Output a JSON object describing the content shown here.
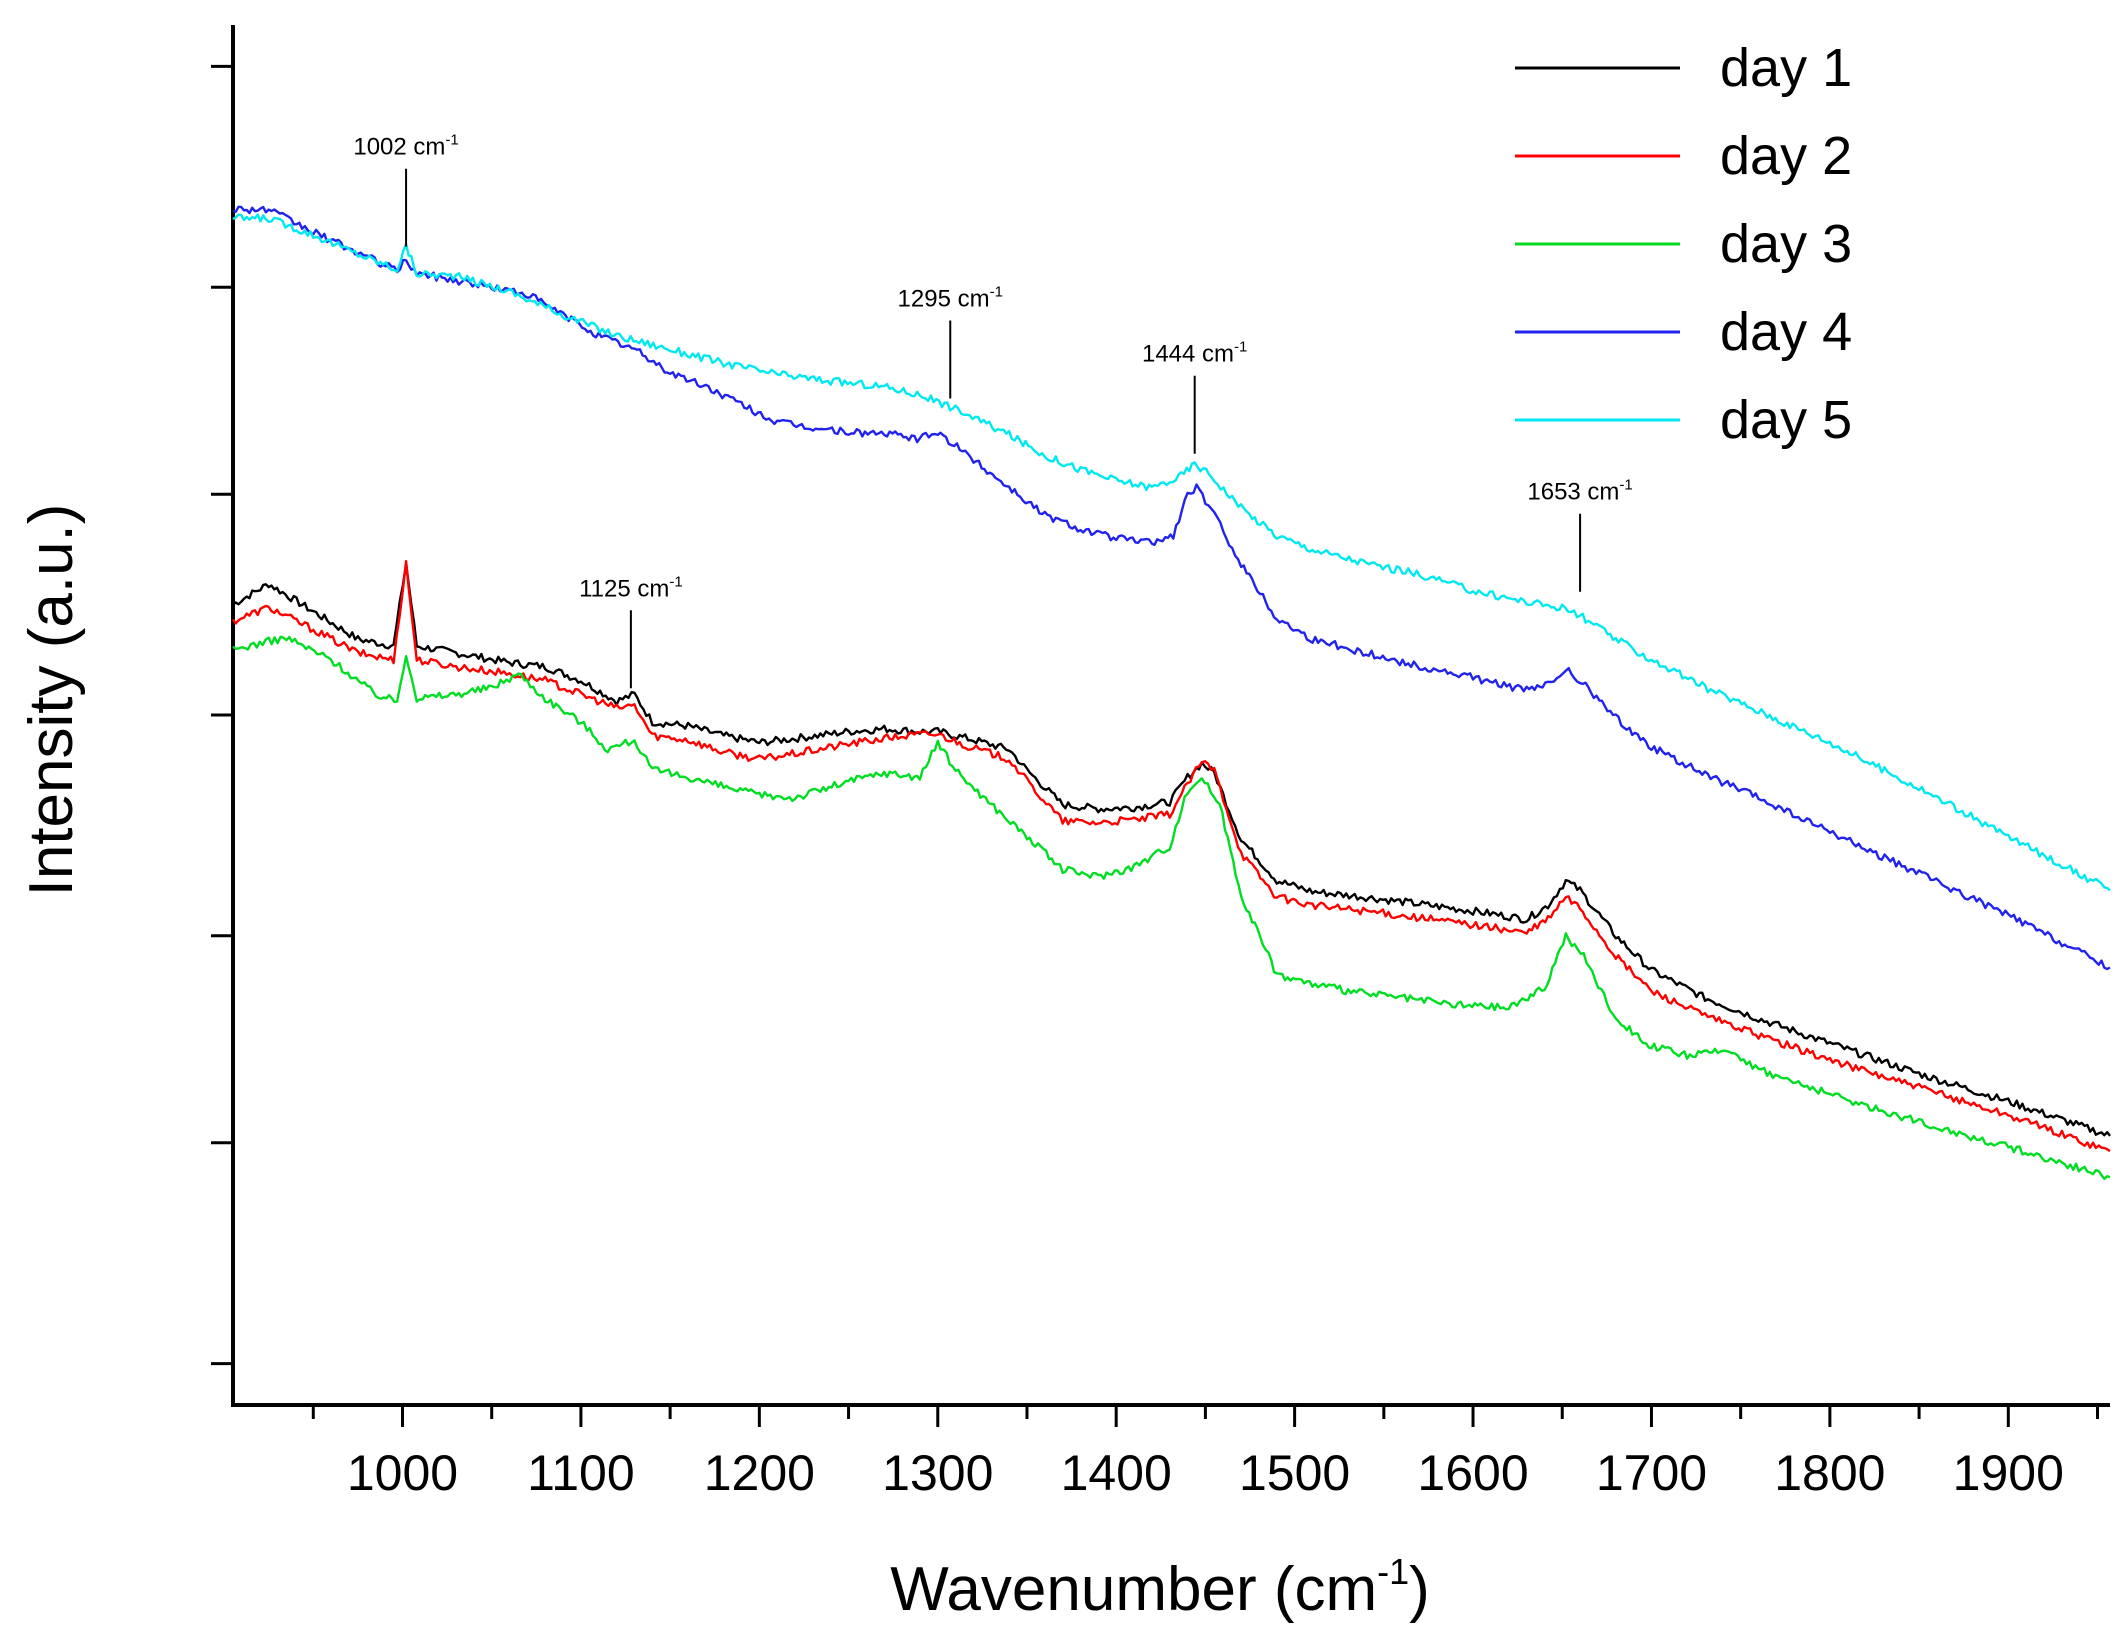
{
  "chart_data": {
    "type": "line",
    "title": "",
    "xlabel": "Wavenumber (cm",
    "xlabel_sup": "-1",
    "xlabel_close": ")",
    "ylabel": "Intensity (a.u.)",
    "xlim": [
      905,
      1957
    ],
    "ylim": [
      0,
      100
    ],
    "x_ticks": [
      1000,
      1100,
      1200,
      1300,
      1400,
      1500,
      1600,
      1700,
      1800,
      1900
    ],
    "x_minor_ticks": [
      950,
      1050,
      1150,
      1250,
      1350,
      1450,
      1550,
      1650,
      1750,
      1850,
      1950
    ],
    "y_ticks_unlabeled": [
      3,
      19,
      34,
      50,
      66,
      81,
      97
    ],
    "legend_position": "top-right",
    "series": [
      {
        "name": "day 1",
        "color": "#000000",
        "points": [
          [
            905,
            58
          ],
          [
            925,
            59.5
          ],
          [
            950,
            57.5
          ],
          [
            975,
            55.5
          ],
          [
            995,
            55
          ],
          [
            1002,
            61
          ],
          [
            1008,
            55
          ],
          [
            1030,
            54.5
          ],
          [
            1060,
            53.8
          ],
          [
            1080,
            53.5
          ],
          [
            1100,
            52.5
          ],
          [
            1120,
            51
          ],
          [
            1130,
            51.5
          ],
          [
            1140,
            49.5
          ],
          [
            1160,
            49.2
          ],
          [
            1180,
            48.5
          ],
          [
            1200,
            48
          ],
          [
            1220,
            48.3
          ],
          [
            1250,
            48.8
          ],
          [
            1270,
            49
          ],
          [
            1290,
            48.8
          ],
          [
            1300,
            48.8
          ],
          [
            1320,
            48.2
          ],
          [
            1340,
            47.5
          ],
          [
            1350,
            46
          ],
          [
            1370,
            43.5
          ],
          [
            1390,
            43.2
          ],
          [
            1410,
            43.3
          ],
          [
            1430,
            43.7
          ],
          [
            1440,
            45.5
          ],
          [
            1448,
            46.5
          ],
          [
            1455,
            45.8
          ],
          [
            1470,
            41
          ],
          [
            1490,
            38
          ],
          [
            1510,
            37.2
          ],
          [
            1540,
            36.8
          ],
          [
            1570,
            36.3
          ],
          [
            1600,
            35.8
          ],
          [
            1630,
            35.2
          ],
          [
            1642,
            36.2
          ],
          [
            1652,
            38
          ],
          [
            1660,
            37.3
          ],
          [
            1680,
            34
          ],
          [
            1700,
            31.5
          ],
          [
            1730,
            29.5
          ],
          [
            1760,
            28
          ],
          [
            1800,
            26.2
          ],
          [
            1850,
            24
          ],
          [
            1900,
            22
          ],
          [
            1957,
            19.5
          ]
        ]
      },
      {
        "name": "day 2",
        "color": "#ff0000",
        "points": [
          [
            905,
            56.8
          ],
          [
            925,
            57.8
          ],
          [
            950,
            56.2
          ],
          [
            975,
            54.5
          ],
          [
            995,
            54
          ],
          [
            1002,
            61
          ],
          [
            1008,
            54
          ],
          [
            1030,
            53.5
          ],
          [
            1060,
            53
          ],
          [
            1080,
            52.5
          ],
          [
            1100,
            51.5
          ],
          [
            1120,
            50.5
          ],
          [
            1130,
            50.7
          ],
          [
            1140,
            48.5
          ],
          [
            1160,
            48.2
          ],
          [
            1180,
            47.3
          ],
          [
            1200,
            46.8
          ],
          [
            1220,
            47.2
          ],
          [
            1250,
            47.9
          ],
          [
            1270,
            48.3
          ],
          [
            1290,
            48.6
          ],
          [
            1300,
            48.6
          ],
          [
            1320,
            47.6
          ],
          [
            1340,
            46.8
          ],
          [
            1350,
            45.2
          ],
          [
            1370,
            42.3
          ],
          [
            1390,
            42.2
          ],
          [
            1410,
            42.4
          ],
          [
            1430,
            42.8
          ],
          [
            1440,
            45
          ],
          [
            1448,
            46.6
          ],
          [
            1455,
            46
          ],
          [
            1470,
            40
          ],
          [
            1490,
            36.8
          ],
          [
            1510,
            36.2
          ],
          [
            1540,
            35.8
          ],
          [
            1570,
            35.3
          ],
          [
            1600,
            34.8
          ],
          [
            1630,
            34.2
          ],
          [
            1642,
            35.2
          ],
          [
            1652,
            36.8
          ],
          [
            1660,
            36
          ],
          [
            1680,
            32.5
          ],
          [
            1700,
            30
          ],
          [
            1730,
            28.2
          ],
          [
            1760,
            26.8
          ],
          [
            1800,
            25
          ],
          [
            1850,
            23
          ],
          [
            1900,
            21
          ],
          [
            1957,
            18.4
          ]
        ]
      },
      {
        "name": "day 3",
        "color": "#00dd22",
        "points": [
          [
            905,
            54.7
          ],
          [
            920,
            55.2
          ],
          [
            935,
            55.6
          ],
          [
            960,
            54
          ],
          [
            985,
            51.5
          ],
          [
            997,
            51
          ],
          [
            1002,
            54.5
          ],
          [
            1008,
            51.2
          ],
          [
            1030,
            51.5
          ],
          [
            1050,
            52
          ],
          [
            1065,
            53
          ],
          [
            1080,
            51.2
          ],
          [
            1100,
            49.5
          ],
          [
            1115,
            47.5
          ],
          [
            1130,
            48.2
          ],
          [
            1140,
            46
          ],
          [
            1160,
            45.5
          ],
          [
            1180,
            44.8
          ],
          [
            1200,
            44.2
          ],
          [
            1220,
            44
          ],
          [
            1250,
            45.2
          ],
          [
            1270,
            45.8
          ],
          [
            1290,
            45.5
          ],
          [
            1300,
            48
          ],
          [
            1310,
            46
          ],
          [
            1330,
            43.5
          ],
          [
            1350,
            41.2
          ],
          [
            1370,
            38.8
          ],
          [
            1390,
            38.3
          ],
          [
            1410,
            39
          ],
          [
            1430,
            40.5
          ],
          [
            1440,
            44.5
          ],
          [
            1448,
            45.5
          ],
          [
            1458,
            43.5
          ],
          [
            1470,
            37
          ],
          [
            1490,
            31.2
          ],
          [
            1510,
            30.5
          ],
          [
            1530,
            30
          ],
          [
            1560,
            29.5
          ],
          [
            1590,
            29
          ],
          [
            1620,
            28.8
          ],
          [
            1640,
            30.2
          ],
          [
            1652,
            34
          ],
          [
            1662,
            32.5
          ],
          [
            1680,
            28
          ],
          [
            1700,
            26
          ],
          [
            1720,
            25.3
          ],
          [
            1745,
            25.7
          ],
          [
            1760,
            24.3
          ],
          [
            1800,
            22.5
          ],
          [
            1850,
            20.5
          ],
          [
            1900,
            18.7
          ],
          [
            1957,
            16.5
          ]
        ]
      },
      {
        "name": "day 4",
        "color": "#2222ee",
        "points": [
          [
            905,
            86.7
          ],
          [
            925,
            86.6
          ],
          [
            950,
            85
          ],
          [
            975,
            83.5
          ],
          [
            997,
            82.2
          ],
          [
            1002,
            83
          ],
          [
            1008,
            82
          ],
          [
            1030,
            81.5
          ],
          [
            1050,
            81
          ],
          [
            1070,
            80.5
          ],
          [
            1090,
            79
          ],
          [
            1110,
            77.5
          ],
          [
            1130,
            76.5
          ],
          [
            1150,
            74.8
          ],
          [
            1170,
            73.8
          ],
          [
            1190,
            72.5
          ],
          [
            1210,
            71.2
          ],
          [
            1230,
            70.8
          ],
          [
            1250,
            70.5
          ],
          [
            1270,
            70.4
          ],
          [
            1290,
            70
          ],
          [
            1300,
            70.5
          ],
          [
            1320,
            68.5
          ],
          [
            1340,
            66.5
          ],
          [
            1360,
            64.5
          ],
          [
            1380,
            63.5
          ],
          [
            1400,
            62.8
          ],
          [
            1420,
            62.5
          ],
          [
            1432,
            63
          ],
          [
            1440,
            66
          ],
          [
            1445,
            66.5
          ],
          [
            1455,
            64.5
          ],
          [
            1470,
            61
          ],
          [
            1490,
            57
          ],
          [
            1510,
            55.5
          ],
          [
            1540,
            54.5
          ],
          [
            1570,
            53.5
          ],
          [
            1600,
            52.7
          ],
          [
            1630,
            51.8
          ],
          [
            1642,
            52.2
          ],
          [
            1652,
            53.3
          ],
          [
            1660,
            52.5
          ],
          [
            1680,
            49.8
          ],
          [
            1700,
            47.7
          ],
          [
            1730,
            45.7
          ],
          [
            1760,
            44
          ],
          [
            1800,
            41.5
          ],
          [
            1850,
            38.5
          ],
          [
            1900,
            35.5
          ],
          [
            1957,
            31.7
          ]
        ]
      },
      {
        "name": "day 5",
        "color": "#00e8f0",
        "points": [
          [
            905,
            86
          ],
          [
            925,
            86
          ],
          [
            950,
            84.8
          ],
          [
            975,
            83.4
          ],
          [
            997,
            82.3
          ],
          [
            1002,
            84
          ],
          [
            1008,
            82
          ],
          [
            1030,
            81.8
          ],
          [
            1060,
            80.7
          ],
          [
            1090,
            79
          ],
          [
            1120,
            77.5
          ],
          [
            1150,
            76.5
          ],
          [
            1180,
            75.5
          ],
          [
            1210,
            74.7
          ],
          [
            1240,
            74.2
          ],
          [
            1270,
            73.8
          ],
          [
            1290,
            73.2
          ],
          [
            1310,
            72.2
          ],
          [
            1340,
            70.3
          ],
          [
            1360,
            68.8
          ],
          [
            1380,
            67.8
          ],
          [
            1400,
            67
          ],
          [
            1420,
            66.5
          ],
          [
            1435,
            67.2
          ],
          [
            1444,
            68.2
          ],
          [
            1452,
            67.5
          ],
          [
            1470,
            65
          ],
          [
            1490,
            63
          ],
          [
            1510,
            62
          ],
          [
            1540,
            61
          ],
          [
            1570,
            60.2
          ],
          [
            1600,
            59
          ],
          [
            1630,
            58.2
          ],
          [
            1650,
            57.8
          ],
          [
            1660,
            57.2
          ],
          [
            1680,
            55.5
          ],
          [
            1700,
            54
          ],
          [
            1730,
            52
          ],
          [
            1760,
            50.3
          ],
          [
            1800,
            48
          ],
          [
            1850,
            44.7
          ],
          [
            1900,
            41.2
          ],
          [
            1957,
            37.3
          ]
        ]
      }
    ],
    "annotations": [
      {
        "text": "1002 cm",
        "sup": "-1",
        "x": 1002,
        "y_peak": 83.5
      },
      {
        "text": "1125 cm",
        "sup": "-1",
        "x": 1128,
        "y_peak": 51.5
      },
      {
        "text": "1295 cm",
        "sup": "-1",
        "x": 1307,
        "y_peak": 72.5
      },
      {
        "text": "1444 cm",
        "sup": "-1",
        "x": 1444,
        "y_peak": 68.5
      },
      {
        "text": "1653 cm",
        "sup": "-1",
        "x": 1660,
        "y_peak": 58.5
      }
    ]
  }
}
